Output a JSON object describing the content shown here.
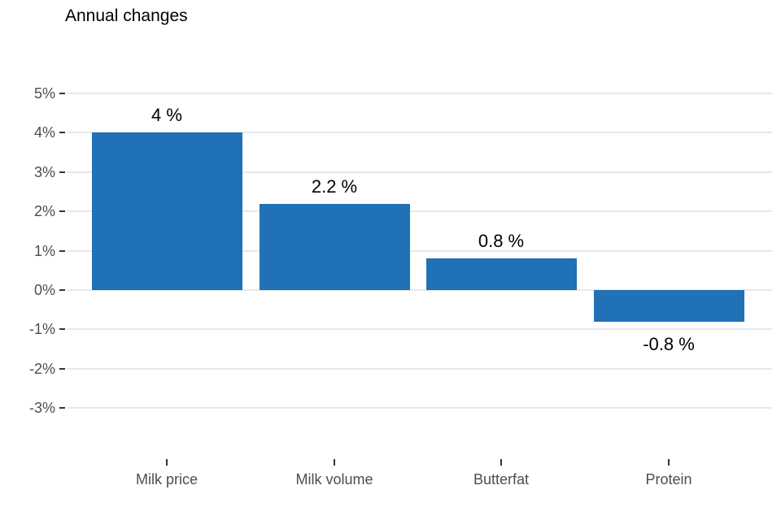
{
  "chart_data": {
    "type": "bar",
    "title": "Annual changes",
    "categories": [
      "Milk price",
      "Milk volume",
      "Butterfat",
      "Protein"
    ],
    "values": [
      4,
      2.2,
      0.8,
      -0.8
    ],
    "value_labels": [
      "4 %",
      "2.2 %",
      "0.8 %",
      "-0.8 %"
    ],
    "y_ticks": [
      5,
      4,
      3,
      2,
      1,
      0,
      -1,
      -2,
      -3
    ],
    "y_tick_labels": [
      "5%",
      "4%",
      "3%",
      "2%",
      "1%",
      "0%",
      "-1%",
      "-2%",
      "-3%"
    ],
    "ylim": [
      -3.8,
      5.5
    ],
    "xlabel": "",
    "ylabel": "",
    "grid": true,
    "legend": false,
    "colors": {
      "bar": "#2071B5",
      "gridline": "#E8E8E8",
      "tick": "#333333",
      "axis_text": "#4D4D4D",
      "value_label": "#000000",
      "title": "#000000",
      "background": "#FFFFFF"
    }
  }
}
